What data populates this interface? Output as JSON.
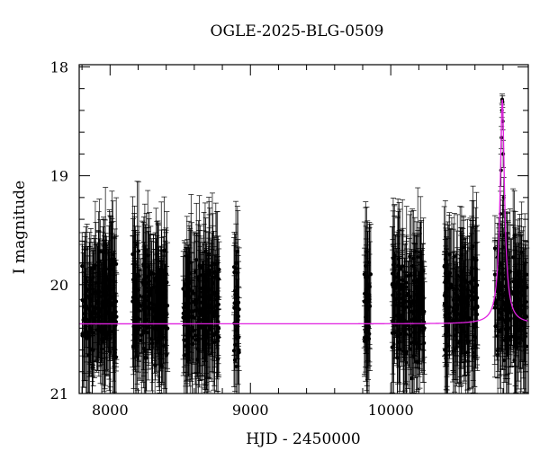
{
  "chart_data": {
    "type": "scatter",
    "title": "OGLE-2025-BLG-0509",
    "xlabel": "HJD - 2450000",
    "ylabel": "I magnitude",
    "xlim": [
      7780,
      10980
    ],
    "ylim": [
      21,
      17.98
    ],
    "y_inverted": true,
    "x_ticks": [
      8000,
      9000,
      10000
    ],
    "y_ticks": [
      18,
      19,
      20,
      21
    ],
    "grid": false,
    "legend": "none",
    "colors": {
      "points": "#000000",
      "model": "#e020e0"
    },
    "seasons": [
      {
        "x_start": 7800,
        "x_end": 8050,
        "mag_center": 20.2,
        "mag_spread": 0.45
      },
      {
        "x_start": 8160,
        "x_end": 8410,
        "mag_center": 20.2,
        "mag_spread": 0.45
      },
      {
        "x_start": 8520,
        "x_end": 8780,
        "mag_center": 20.2,
        "mag_spread": 0.45
      },
      {
        "x_start": 8880,
        "x_end": 8920,
        "mag_center": 20.2,
        "mag_spread": 0.45
      },
      {
        "x_start": 9810,
        "x_end": 9860,
        "mag_center": 20.2,
        "mag_spread": 0.45
      },
      {
        "x_start": 10010,
        "x_end": 10240,
        "mag_center": 20.2,
        "mag_spread": 0.45
      },
      {
        "x_start": 10380,
        "x_end": 10620,
        "mag_center": 20.2,
        "mag_spread": 0.45
      },
      {
        "x_start": 10740,
        "x_end": 10970,
        "mag_center": 20.2,
        "mag_spread": 0.45
      }
    ],
    "model": {
      "baseline_mag": 20.36,
      "peak_x": 10795,
      "peak_mag": 18.3,
      "width_days": 12
    },
    "peak_points": [
      {
        "x": 10782,
        "y": 19.35
      },
      {
        "x": 10786,
        "y": 18.95
      },
      {
        "x": 10789,
        "y": 18.65
      },
      {
        "x": 10792,
        "y": 18.4
      },
      {
        "x": 10794,
        "y": 18.3
      },
      {
        "x": 10796,
        "y": 18.32
      },
      {
        "x": 10798,
        "y": 18.5
      },
      {
        "x": 10801,
        "y": 18.8
      },
      {
        "x": 10805,
        "y": 19.2
      },
      {
        "x": 10810,
        "y": 19.55
      }
    ]
  }
}
